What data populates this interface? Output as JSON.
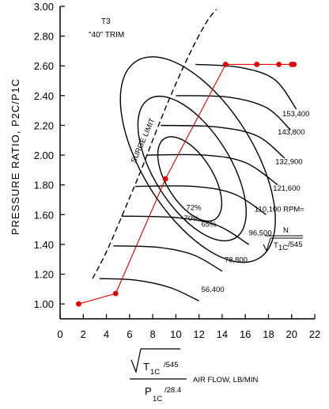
{
  "chart_data": {
    "type": "line",
    "title": "T3",
    "subtitle": "\"40\" TRIM",
    "ylabel": "PRESSURE RATIO, P2C/P1C",
    "xlabel": "AIR FLOW, LB/MIN",
    "xlabel_formula": {
      "numerator_main": "T",
      "numerator_sub": "1C",
      "numerator_div": "/545",
      "denominator_main": "P",
      "denominator_sub": "1C",
      "denominator_div": "/28.4"
    },
    "xlim": [
      0,
      22
    ],
    "ylim": [
      0.9,
      3.0
    ],
    "xticks": [
      0,
      2,
      4,
      6,
      8,
      10,
      12,
      14,
      16,
      18,
      20,
      22
    ],
    "yticks": [
      1.0,
      1.2,
      1.4,
      1.6,
      1.8,
      2.0,
      2.2,
      2.4,
      2.6,
      2.8,
      3.0
    ],
    "x_tick_labels": [
      "0",
      "2",
      "4",
      "6",
      "8",
      "10",
      "12",
      "14",
      "16",
      "18",
      "20",
      "22"
    ],
    "y_tick_labels": [
      "1.00",
      "1.20",
      "1.40",
      "1.60",
      "1.80",
      "2.00",
      "2.20",
      "2.40",
      "2.60",
      "2.80",
      "3.00"
    ],
    "grid": false,
    "surge_limit": {
      "label": "SURGE LIMIT",
      "x": [
        2.8,
        4.0,
        5.5,
        7.0,
        8.5,
        10.0,
        11.5,
        12.7,
        13.5
      ],
      "y": [
        1.17,
        1.35,
        1.62,
        1.9,
        2.2,
        2.48,
        2.73,
        2.9,
        2.98
      ]
    },
    "speed_lines": [
      {
        "label": "56,400",
        "x": [
          3.4,
          6.5,
          9.5,
          12.0
        ],
        "y": [
          1.17,
          1.16,
          1.11,
          1.02
        ]
      },
      {
        "label": "78,800",
        "x": [
          4.6,
          8.5,
          11.5,
          14.0
        ],
        "y": [
          1.39,
          1.38,
          1.33,
          1.22
        ]
      },
      {
        "label": "96,500",
        "x": [
          5.3,
          10.0,
          13.5,
          16.3
        ],
        "y": [
          1.59,
          1.58,
          1.53,
          1.4
        ]
      },
      {
        "label": "110,100 RPM=",
        "x": [
          6.5,
          11.5,
          15.0,
          17.8
        ],
        "y": [
          1.79,
          1.79,
          1.74,
          1.6
        ]
      },
      {
        "label": "121,600",
        "x": [
          7.5,
          12.5,
          16.0,
          18.8
        ],
        "y": [
          2.0,
          2.0,
          1.95,
          1.8
        ]
      },
      {
        "label": "132,900",
        "x": [
          8.7,
          13.5,
          17.0,
          19.4
        ],
        "y": [
          2.2,
          2.19,
          2.13,
          1.98
        ]
      },
      {
        "label": "143,800",
        "x": [
          10.0,
          14.5,
          17.8,
          19.9
        ],
        "y": [
          2.4,
          2.39,
          2.32,
          2.17
        ]
      },
      {
        "label": "153,400",
        "x": [
          11.7,
          15.5,
          18.5,
          20.4
        ],
        "y": [
          2.61,
          2.59,
          2.51,
          2.31
        ]
      }
    ],
    "rpm_denominator": {
      "top": "N",
      "bottom_sub": "1C",
      "bottom_div": "/545",
      "bottom_main": "T"
    },
    "efficiency_islands": [
      {
        "label": "72%",
        "cx": 11.2,
        "cy": 1.84,
        "rx": 2.0,
        "ry": 0.32
      },
      {
        "label": "70%",
        "cx": 11.4,
        "cy": 1.91,
        "rx": 3.3,
        "ry": 0.55
      },
      {
        "label": "65%",
        "cx": 11.9,
        "cy": 1.97,
        "rx": 4.8,
        "ry": 0.78
      }
    ],
    "operating_line": {
      "x": [
        1.6,
        4.8,
        9.1,
        14.3,
        17.0,
        18.9,
        20.0,
        20.2
      ],
      "y": [
        1.0,
        1.07,
        1.84,
        2.61,
        2.61,
        2.61,
        2.61,
        2.61
      ],
      "color": "#dd0000"
    },
    "colors": {
      "ink": "#000000",
      "operating": "#dd0000",
      "background": "#ffffff"
    }
  }
}
